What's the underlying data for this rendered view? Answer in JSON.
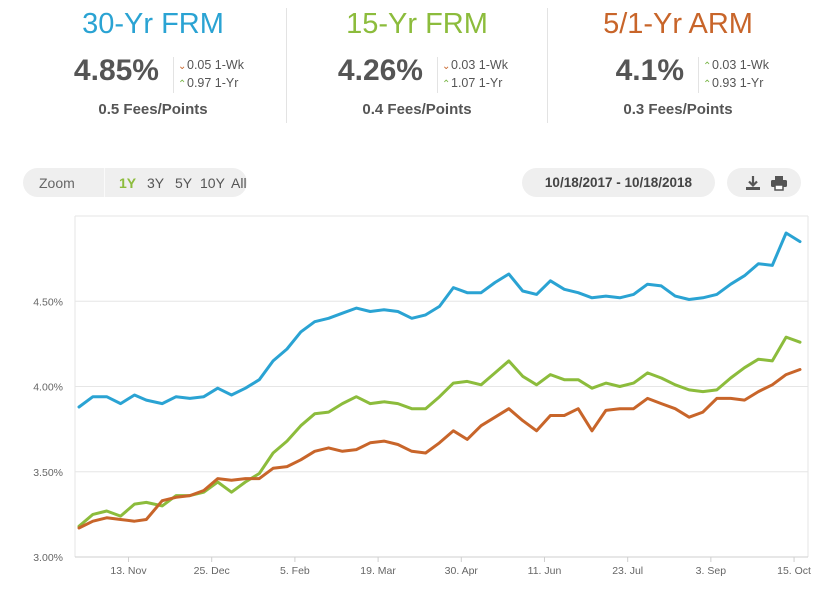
{
  "stats": [
    {
      "title": "30-Yr FRM",
      "color": "#2aa3d3",
      "rate": "4.85%",
      "wk": "0.05 1-Wk",
      "wk_dir": "down",
      "yr": "0.97 1-Yr",
      "yr_dir": "up",
      "fees": "0.5 Fees/Points"
    },
    {
      "title": "15-Yr FRM",
      "color": "#8cbc3c",
      "rate": "4.26%",
      "wk": "0.03 1-Wk",
      "wk_dir": "down",
      "yr": "1.07 1-Yr",
      "yr_dir": "up",
      "fees": "0.4 Fees/Points"
    },
    {
      "title": "5/1-Yr ARM",
      "color": "#c8652a",
      "rate": "4.1%",
      "wk": "0.03 1-Wk",
      "wk_dir": "up",
      "yr": "0.93 1-Yr",
      "yr_dir": "up",
      "fees": "0.3 Fees/Points"
    }
  ],
  "zoom": {
    "label": "Zoom",
    "options": [
      "1Y",
      "3Y",
      "5Y",
      "10Y",
      "All"
    ],
    "active": "1Y"
  },
  "date_range": "10/18/2017 - 10/18/2018",
  "tools": {
    "download_icon": "download-icon",
    "print_icon": "print-icon"
  },
  "chart_data": {
    "type": "line",
    "title": "",
    "xlabel": "",
    "ylabel": "",
    "ylim": [
      3.0,
      5.0
    ],
    "y_ticks": [
      3.0,
      3.5,
      4.0,
      4.5
    ],
    "y_tick_labels": [
      "3.00%",
      "3.50%",
      "4.00%",
      "4.50%"
    ],
    "x_tick_labels": [
      "13. Nov",
      "25. Dec",
      "5. Feb",
      "19. Mar",
      "30. Apr",
      "11. Jun",
      "23. Jul",
      "3. Sep",
      "15. Oct"
    ],
    "grid": true,
    "legend": "none",
    "x": [
      "2017-10-19",
      "2017-10-26",
      "2017-11-02",
      "2017-11-09",
      "2017-11-16",
      "2017-11-22",
      "2017-11-30",
      "2017-12-07",
      "2017-12-14",
      "2017-12-21",
      "2017-12-28",
      "2018-01-04",
      "2018-01-11",
      "2018-01-18",
      "2018-01-25",
      "2018-02-01",
      "2018-02-08",
      "2018-02-15",
      "2018-02-22",
      "2018-03-01",
      "2018-03-08",
      "2018-03-15",
      "2018-03-22",
      "2018-03-29",
      "2018-04-05",
      "2018-04-12",
      "2018-04-19",
      "2018-04-26",
      "2018-05-03",
      "2018-05-10",
      "2018-05-17",
      "2018-05-24",
      "2018-05-31",
      "2018-06-07",
      "2018-06-14",
      "2018-06-21",
      "2018-06-28",
      "2018-07-05",
      "2018-07-12",
      "2018-07-19",
      "2018-07-26",
      "2018-08-02",
      "2018-08-09",
      "2018-08-16",
      "2018-08-23",
      "2018-08-30",
      "2018-09-06",
      "2018-09-13",
      "2018-09-20",
      "2018-09-27",
      "2018-10-04",
      "2018-10-11",
      "2018-10-18"
    ],
    "series": [
      {
        "color": "#2aa3d3",
        "values": [
          3.88,
          3.94,
          3.94,
          3.9,
          3.95,
          3.92,
          3.9,
          3.94,
          3.93,
          3.94,
          3.99,
          3.95,
          3.99,
          4.04,
          4.15,
          4.22,
          4.32,
          4.38,
          4.4,
          4.43,
          4.46,
          4.44,
          4.45,
          4.44,
          4.4,
          4.42,
          4.47,
          4.58,
          4.55,
          4.55,
          4.61,
          4.66,
          4.56,
          4.54,
          4.62,
          4.57,
          4.55,
          4.52,
          4.53,
          4.52,
          4.54,
          4.6,
          4.59,
          4.53,
          4.51,
          4.52,
          4.54,
          4.6,
          4.65,
          4.72,
          4.71,
          4.9,
          4.85
        ]
      },
      {
        "color": "#8cbc3c",
        "values": [
          3.18,
          3.25,
          3.27,
          3.24,
          3.31,
          3.32,
          3.3,
          3.36,
          3.36,
          3.38,
          3.44,
          3.38,
          3.44,
          3.49,
          3.61,
          3.68,
          3.77,
          3.84,
          3.85,
          3.9,
          3.94,
          3.9,
          3.91,
          3.9,
          3.87,
          3.87,
          3.94,
          4.02,
          4.03,
          4.01,
          4.08,
          4.15,
          4.06,
          4.01,
          4.07,
          4.04,
          4.04,
          3.99,
          4.02,
          4.0,
          4.02,
          4.08,
          4.05,
          4.01,
          3.98,
          3.97,
          3.98,
          4.05,
          4.11,
          4.16,
          4.15,
          4.29,
          4.26
        ]
      },
      {
        "color": "#c8652a",
        "values": [
          3.17,
          3.21,
          3.23,
          3.22,
          3.21,
          3.22,
          3.33,
          3.35,
          3.36,
          3.39,
          3.46,
          3.45,
          3.46,
          3.46,
          3.52,
          3.53,
          3.57,
          3.62,
          3.64,
          3.62,
          3.63,
          3.67,
          3.68,
          3.66,
          3.62,
          3.61,
          3.67,
          3.74,
          3.69,
          3.77,
          3.82,
          3.87,
          3.8,
          3.74,
          3.83,
          3.83,
          3.87,
          3.74,
          3.86,
          3.87,
          3.87,
          3.93,
          3.9,
          3.87,
          3.82,
          3.85,
          3.93,
          3.93,
          3.92,
          3.97,
          4.01,
          4.07,
          4.1
        ]
      }
    ]
  }
}
